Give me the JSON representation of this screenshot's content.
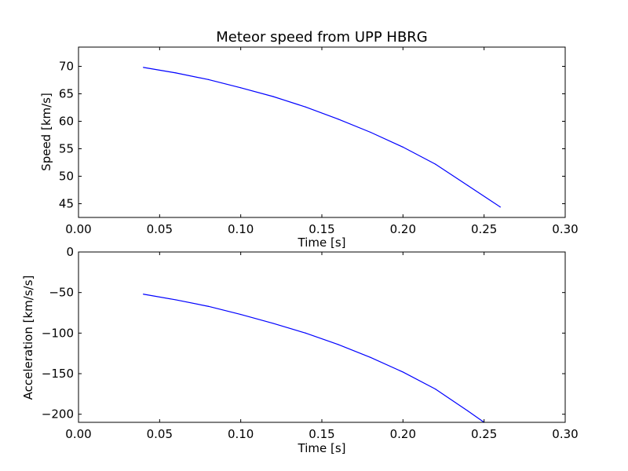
{
  "chart_data": [
    {
      "type": "line",
      "title": "Meteor speed from  UPP HBRG",
      "xlabel": "Time [s]",
      "ylabel": "Speed [km/s]",
      "xlim": [
        0.0,
        0.3
      ],
      "ylim": [
        42.5,
        73.5
      ],
      "xticks": [
        "0.00",
        "0.05",
        "0.10",
        "0.15",
        "0.20",
        "0.25",
        "0.30"
      ],
      "xtick_values": [
        0.0,
        0.05,
        0.1,
        0.15,
        0.2,
        0.25,
        0.3
      ],
      "yticks": [
        "45",
        "50",
        "55",
        "60",
        "65",
        "70"
      ],
      "ytick_values": [
        45,
        50,
        55,
        60,
        65,
        70
      ],
      "grid": false,
      "series": [
        {
          "color": "#0000ff",
          "x": [
            0.04,
            0.06,
            0.08,
            0.1,
            0.12,
            0.14,
            0.16,
            0.18,
            0.2,
            0.22,
            0.24,
            0.26
          ],
          "y": [
            69.8,
            68.8,
            67.6,
            66.1,
            64.5,
            62.6,
            60.4,
            58.0,
            55.3,
            52.2,
            48.3,
            44.4
          ]
        }
      ]
    },
    {
      "type": "line",
      "title": "",
      "xlabel": "Time [s]",
      "ylabel": "Acceleration [km/s/s]",
      "xlim": [
        0.0,
        0.3
      ],
      "ylim": [
        -210,
        0
      ],
      "xticks": [
        "0.00",
        "0.05",
        "0.10",
        "0.15",
        "0.20",
        "0.25",
        "0.30"
      ],
      "xtick_values": [
        0.0,
        0.05,
        0.1,
        0.15,
        0.2,
        0.25,
        0.3
      ],
      "yticks": [
        "0",
        "−50",
        "−100",
        "−150",
        "−200"
      ],
      "ytick_values": [
        0,
        -50,
        -100,
        -150,
        -200
      ],
      "grid": false,
      "series": [
        {
          "color": "#0000ff",
          "x": [
            0.04,
            0.06,
            0.08,
            0.1,
            0.12,
            0.14,
            0.16,
            0.18,
            0.2,
            0.22,
            0.24,
            0.25
          ],
          "y": [
            -52,
            -59,
            -67,
            -77,
            -88,
            -100,
            -114,
            -130,
            -148,
            -169,
            -196,
            -210
          ]
        }
      ]
    }
  ]
}
